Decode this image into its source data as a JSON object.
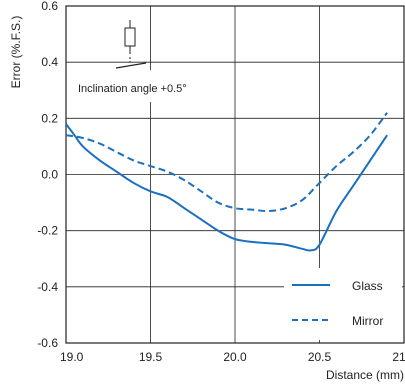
{
  "chart_data": {
    "type": "line",
    "xlabel": "Distance (mm)",
    "ylabel": "Error (%.F.S.)",
    "xlim": [
      19.0,
      21.0
    ],
    "ylim": [
      -0.6,
      0.6
    ],
    "x_ticks": [
      "19.0",
      "19.5",
      "20.0",
      "20.5",
      "21.0"
    ],
    "y_ticks": [
      "0.6",
      "0.4",
      "0.2",
      "0.0",
      "-0.2",
      "-0.4",
      "-0.6"
    ],
    "grid": true,
    "legend_position": "bottom-right",
    "annotation": "Inclination angle +0.5°",
    "series": [
      {
        "name": "Glass",
        "style": "solid",
        "color": "#1a6fbf",
        "x": [
          19.0,
          19.05,
          19.1,
          19.2,
          19.3,
          19.4,
          19.5,
          19.6,
          19.7,
          19.8,
          19.9,
          20.0,
          20.1,
          20.2,
          20.3,
          20.4,
          20.45,
          20.5,
          20.6,
          20.7,
          20.8,
          20.9
        ],
        "y": [
          0.18,
          0.14,
          0.1,
          0.05,
          0.01,
          -0.03,
          -0.06,
          -0.08,
          -0.12,
          -0.16,
          -0.2,
          -0.23,
          -0.24,
          -0.245,
          -0.25,
          -0.265,
          -0.27,
          -0.25,
          -0.13,
          -0.04,
          0.05,
          0.14
        ]
      },
      {
        "name": "Mirror",
        "style": "dashed",
        "color": "#1a6fbf",
        "x": [
          19.0,
          19.1,
          19.2,
          19.3,
          19.4,
          19.5,
          19.6,
          19.7,
          19.8,
          19.9,
          20.0,
          20.1,
          20.2,
          20.3,
          20.4,
          20.5,
          20.6,
          20.7,
          20.8,
          20.9
        ],
        "y": [
          0.14,
          0.13,
          0.11,
          0.08,
          0.05,
          0.03,
          0.01,
          -0.02,
          -0.06,
          -0.1,
          -0.12,
          -0.125,
          -0.13,
          -0.12,
          -0.09,
          -0.03,
          0.03,
          0.08,
          0.14,
          0.22
        ]
      }
    ]
  }
}
